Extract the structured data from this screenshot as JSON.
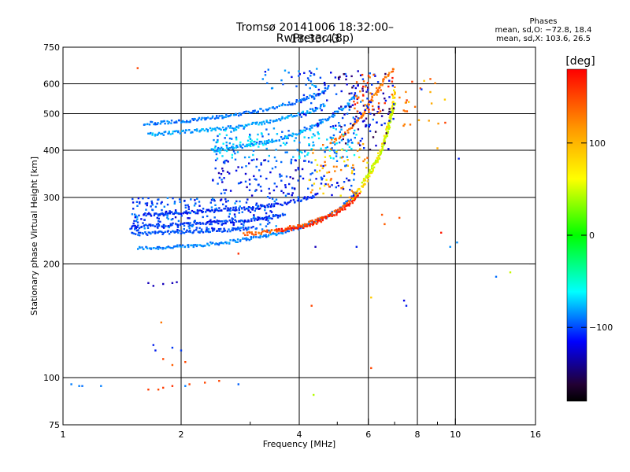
{
  "chart_data": {
    "type": "scatter",
    "title": "Tromsø 20141006 18:32:00–18:33:43",
    "subtitle": "RwPretec (8p)",
    "xlabel": "Frequency [MHz]",
    "ylabel": "Stationary phase Virtual Height [km]",
    "x_scale": "log",
    "y_scale": "log",
    "xlim": [
      1,
      16
    ],
    "ylim": [
      75,
      750
    ],
    "x_ticks": [
      1,
      2,
      4,
      6,
      8,
      10,
      16
    ],
    "x_tick_labels": [
      "1",
      "2",
      "4",
      "6",
      "8",
      "10",
      "16"
    ],
    "x_minor_ticks": [
      3,
      5,
      7,
      9
    ],
    "y_ticks": [
      75,
      100,
      200,
      300,
      400,
      500,
      600,
      750
    ],
    "y_tick_labels": [
      "75",
      "100",
      "200",
      "300",
      "400",
      "500",
      "600",
      "750"
    ],
    "grid_x": [
      2,
      4,
      6,
      8,
      10
    ],
    "grid_y": [
      100,
      200,
      300,
      400,
      500,
      600
    ],
    "grid": true,
    "phase_stats": {
      "heading": "Phases",
      "line_o": "mean, sd,O: −72.8, 18.4",
      "line_x": "mean, sd,X: 103.6, 26.5"
    },
    "colorbar": {
      "title": "[deg]",
      "range": [
        -180,
        180
      ],
      "ticks": [
        100,
        0,
        -100
      ],
      "tick_labels": [
        "100",
        "0",
        "−100"
      ]
    },
    "traces": [
      {
        "x": [
          1.55,
          1.8,
          2.1,
          2.6,
          3.1,
          3.6,
          4.0,
          4.3,
          4.7,
          5.0,
          5.3,
          5.6
        ],
        "y": [
          220,
          221,
          223,
          228,
          235,
          242,
          250,
          257,
          266,
          277,
          292,
          310
        ],
        "phase": -85
      },
      {
        "x": [
          1.48,
          1.7,
          1.9,
          2.2,
          2.5,
          2.9,
          3.3,
          3.7
        ],
        "y": [
          250,
          252,
          254,
          256,
          258,
          260,
          265,
          270
        ],
        "phase": -110
      },
      {
        "x": [
          1.6,
          1.9,
          2.2,
          2.6,
          3.0,
          3.5,
          4.0,
          4.5
        ],
        "y": [
          270,
          272,
          275,
          278,
          282,
          287,
          295,
          305
        ],
        "phase": -115
      },
      {
        "x": [
          1.5,
          1.8,
          2.2,
          2.6,
          3.0
        ],
        "y": [
          240,
          242,
          244,
          246,
          248
        ],
        "phase": -100
      },
      {
        "x": [
          2.9,
          3.3,
          3.7,
          4.1,
          4.4,
          4.7,
          5.0,
          5.3,
          5.6
        ],
        "y": [
          240,
          243,
          248,
          254,
          260,
          268,
          277,
          290,
          305
        ],
        "phase": 140
      },
      {
        "x": [
          3.5,
          3.9,
          4.3,
          4.6,
          4.9,
          5.2,
          5.5,
          5.7
        ],
        "y": [
          245,
          248,
          255,
          262,
          270,
          280,
          293,
          310
        ],
        "phase": 165
      },
      {
        "x": [
          5.5,
          5.7,
          5.9,
          6.1,
          6.3,
          6.5,
          6.7,
          6.9,
          7.0
        ],
        "y": [
          300,
          315,
          330,
          350,
          375,
          410,
          450,
          510,
          580
        ],
        "phase": 90
      },
      {
        "x": [
          5.8,
          6.0,
          6.2,
          6.4,
          6.6,
          6.8,
          7.0
        ],
        "y": [
          330,
          345,
          365,
          385,
          420,
          470,
          540
        ],
        "phase": 60
      },
      {
        "x": [
          1.65,
          1.9,
          2.3,
          2.7,
          3.2,
          3.7,
          4.2,
          4.7
        ],
        "y": [
          440,
          445,
          452,
          460,
          472,
          488,
          505,
          530
        ],
        "phase": -75
      },
      {
        "x": [
          1.6,
          1.9,
          2.2,
          2.6,
          3.0,
          3.5,
          4.0,
          4.5,
          4.8
        ],
        "y": [
          470,
          475,
          482,
          492,
          505,
          520,
          540,
          565,
          590
        ],
        "phase": -90
      },
      {
        "x": [
          2.4,
          2.8,
          3.2,
          3.6,
          4.0,
          4.4,
          4.8,
          5.2,
          5.6
        ],
        "y": [
          400,
          408,
          418,
          430,
          445,
          465,
          490,
          520,
          560
        ],
        "phase": -80
      },
      {
        "x": [
          4.8,
          5.2,
          5.5,
          5.8,
          6.0,
          6.3,
          6.6,
          7.0
        ],
        "y": [
          420,
          440,
          465,
          495,
          530,
          570,
          620,
          660
        ],
        "phase": 130
      }
    ],
    "clusters": [
      {
        "x": [
          1.5,
          3.5
        ],
        "y": [
          245,
          300
        ],
        "n": 240,
        "phase": -105
      },
      {
        "x": [
          2.4,
          5.6
        ],
        "y": [
          380,
          460
        ],
        "n": 180,
        "phase": -70
      },
      {
        "x": [
          2.4,
          5.6
        ],
        "y": [
          300,
          380
        ],
        "n": 150,
        "phase": -115
      },
      {
        "x": [
          4.0,
          6.2
        ],
        "y": [
          460,
          650
        ],
        "n": 90,
        "phase": -110
      },
      {
        "x": [
          5.0,
          7.0
        ],
        "y": [
          400,
          650
        ],
        "n": 80,
        "phase": -140
      },
      {
        "x": [
          4.2,
          6.0
        ],
        "y": [
          300,
          420
        ],
        "n": 60,
        "phase": 110
      },
      {
        "x": [
          5.5,
          7.0
        ],
        "y": [
          500,
          650
        ],
        "n": 40,
        "phase": 150
      },
      {
        "x": [
          3.2,
          4.5
        ],
        "y": [
          580,
          660
        ],
        "n": 20,
        "phase": -95
      },
      {
        "x": [
          7.0,
          9.5
        ],
        "y": [
          460,
          620
        ],
        "n": 25,
        "phase": 130
      }
    ],
    "points": [
      {
        "x": 1.55,
        "y": 660,
        "phase": 150
      },
      {
        "x": 1.05,
        "y": 96,
        "phase": -85
      },
      {
        "x": 1.1,
        "y": 95,
        "phase": -85
      },
      {
        "x": 1.12,
        "y": 95,
        "phase": -90
      },
      {
        "x": 1.25,
        "y": 95,
        "phase": -85
      },
      {
        "x": 1.65,
        "y": 93,
        "phase": 155
      },
      {
        "x": 1.75,
        "y": 93,
        "phase": 150
      },
      {
        "x": 1.8,
        "y": 94,
        "phase": 155
      },
      {
        "x": 1.9,
        "y": 95,
        "phase": 160
      },
      {
        "x": 2.05,
        "y": 95,
        "phase": -85
      },
      {
        "x": 2.1,
        "y": 96,
        "phase": 150
      },
      {
        "x": 2.3,
        "y": 97,
        "phase": 150
      },
      {
        "x": 2.5,
        "y": 98,
        "phase": 150
      },
      {
        "x": 2.8,
        "y": 96,
        "phase": -95
      },
      {
        "x": 1.65,
        "y": 178,
        "phase": -140
      },
      {
        "x": 1.7,
        "y": 175,
        "phase": -140
      },
      {
        "x": 1.8,
        "y": 177,
        "phase": -140
      },
      {
        "x": 1.9,
        "y": 178,
        "phase": -140
      },
      {
        "x": 1.95,
        "y": 179,
        "phase": -140
      },
      {
        "x": 1.78,
        "y": 140,
        "phase": 130
      },
      {
        "x": 1.7,
        "y": 122,
        "phase": -120
      },
      {
        "x": 1.72,
        "y": 118,
        "phase": -120
      },
      {
        "x": 1.9,
        "y": 120,
        "phase": -110
      },
      {
        "x": 2.0,
        "y": 118,
        "phase": -110
      },
      {
        "x": 1.8,
        "y": 112,
        "phase": 150
      },
      {
        "x": 2.05,
        "y": 110,
        "phase": 150
      },
      {
        "x": 1.9,
        "y": 108,
        "phase": 140
      },
      {
        "x": 2.8,
        "y": 213,
        "phase": 160
      },
      {
        "x": 4.4,
        "y": 222,
        "phase": -140
      },
      {
        "x": 5.6,
        "y": 222,
        "phase": -120
      },
      {
        "x": 4.3,
        "y": 155,
        "phase": 150
      },
      {
        "x": 4.35,
        "y": 90,
        "phase": 50
      },
      {
        "x": 6.1,
        "y": 106,
        "phase": 150
      },
      {
        "x": 6.1,
        "y": 163,
        "phase": 100
      },
      {
        "x": 7.4,
        "y": 160,
        "phase": -130
      },
      {
        "x": 7.5,
        "y": 155,
        "phase": -120
      },
      {
        "x": 9.2,
        "y": 242,
        "phase": 170
      },
      {
        "x": 9.7,
        "y": 222,
        "phase": -80
      },
      {
        "x": 10.1,
        "y": 228,
        "phase": -80
      },
      {
        "x": 10.2,
        "y": 380,
        "phase": -120
      },
      {
        "x": 12.7,
        "y": 185,
        "phase": -90
      },
      {
        "x": 13.8,
        "y": 190,
        "phase": 60
      },
      {
        "x": 9.0,
        "y": 405,
        "phase": 110
      },
      {
        "x": 7.2,
        "y": 265,
        "phase": 145
      },
      {
        "x": 6.5,
        "y": 270,
        "phase": 145
      },
      {
        "x": 6.6,
        "y": 255,
        "phase": 140
      },
      {
        "x": 8.2,
        "y": 580,
        "phase": -110
      },
      {
        "x": 9.4,
        "y": 545,
        "phase": 100
      }
    ]
  }
}
